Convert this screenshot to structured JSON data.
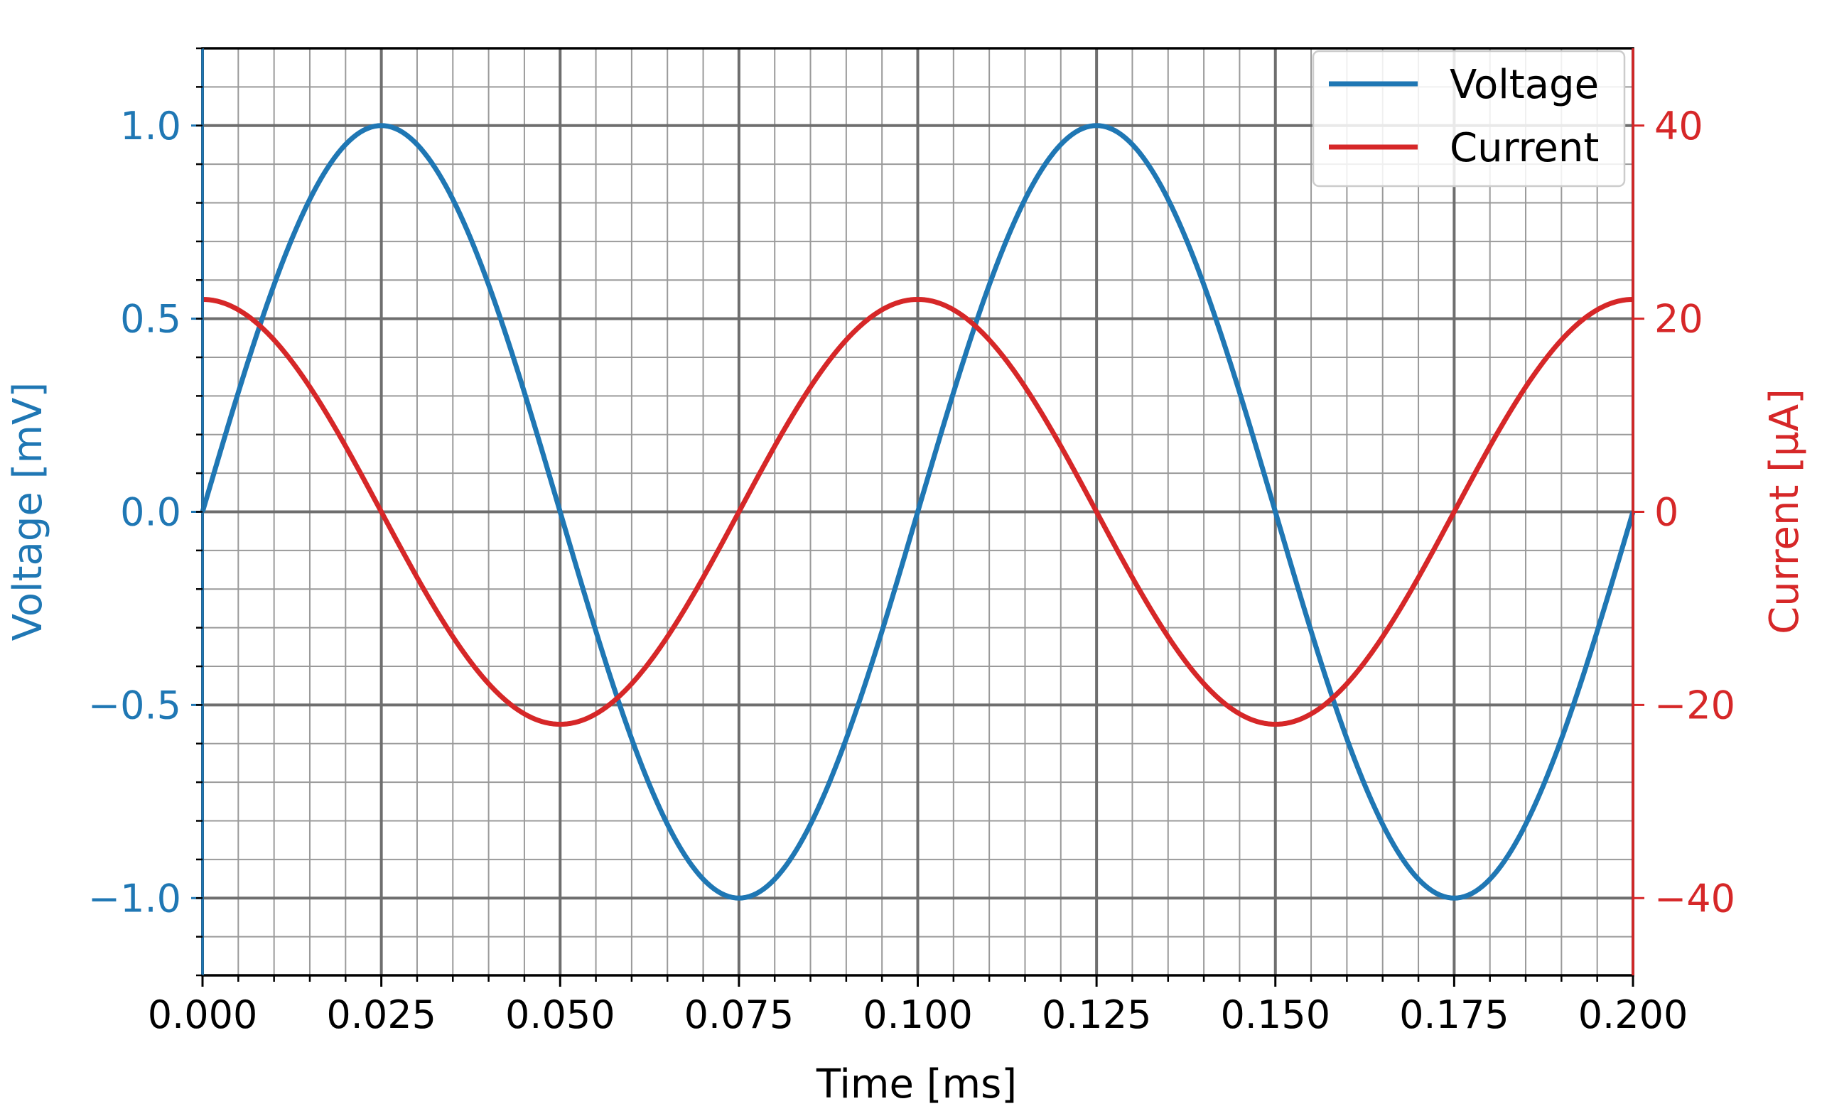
{
  "chart_data": {
    "type": "line",
    "xlabel": "Time [ms]",
    "ylabel_left": "Voltage [mV]",
    "ylabel_right": "Current [µA]",
    "xlim": [
      0.0,
      0.2
    ],
    "ylim_left": [
      -1.2,
      1.2
    ],
    "ylim_right": [
      -48,
      48
    ],
    "x_ticks": [
      0.0,
      0.025,
      0.05,
      0.075,
      0.1,
      0.125,
      0.15,
      0.175,
      0.2
    ],
    "x_tick_labels": [
      "0.000",
      "0.025",
      "0.050",
      "0.075",
      "0.100",
      "0.125",
      "0.150",
      "0.175",
      "0.200"
    ],
    "y_left_ticks": [
      -1.0,
      -0.5,
      0.0,
      0.5,
      1.0
    ],
    "y_left_tick_labels": [
      "−1.0",
      "−0.5",
      "0.0",
      "0.5",
      "1.0"
    ],
    "y_right_ticks": [
      -40,
      -20,
      0,
      20,
      40
    ],
    "y_right_tick_labels": [
      "−40",
      "−20",
      "0",
      "20",
      "40"
    ],
    "grid": true,
    "minor_grid": true,
    "legend_position": "top-right",
    "series": [
      {
        "name": "Voltage",
        "axis": "left",
        "color": "#1f77b4",
        "waveform": "sine",
        "amplitude": 1.0,
        "period": 0.1,
        "phase": "sin",
        "x": [
          0.0,
          0.0125,
          0.025,
          0.0375,
          0.05,
          0.0625,
          0.075,
          0.0875,
          0.1,
          0.1125,
          0.125,
          0.1375,
          0.15,
          0.1625,
          0.175,
          0.1875,
          0.2
        ],
        "y": [
          0.0,
          0.707,
          1.0,
          0.707,
          0.0,
          -0.707,
          -1.0,
          -0.707,
          0.0,
          0.707,
          1.0,
          0.707,
          0.0,
          -0.707,
          -1.0,
          -0.707,
          0.0
        ]
      },
      {
        "name": "Current",
        "axis": "right",
        "color": "#d62728",
        "waveform": "sine",
        "amplitude": 22,
        "period": 0.1,
        "phase": "cos",
        "x": [
          0.0,
          0.0125,
          0.025,
          0.0375,
          0.05,
          0.0625,
          0.075,
          0.0875,
          0.1,
          0.1125,
          0.125,
          0.1375,
          0.15,
          0.1625,
          0.175,
          0.1875,
          0.2
        ],
        "y": [
          22,
          15.6,
          0,
          -15.6,
          -22,
          -15.6,
          0,
          15.6,
          22,
          15.6,
          0,
          -15.6,
          -22,
          -15.6,
          0,
          15.6,
          22
        ]
      }
    ]
  }
}
